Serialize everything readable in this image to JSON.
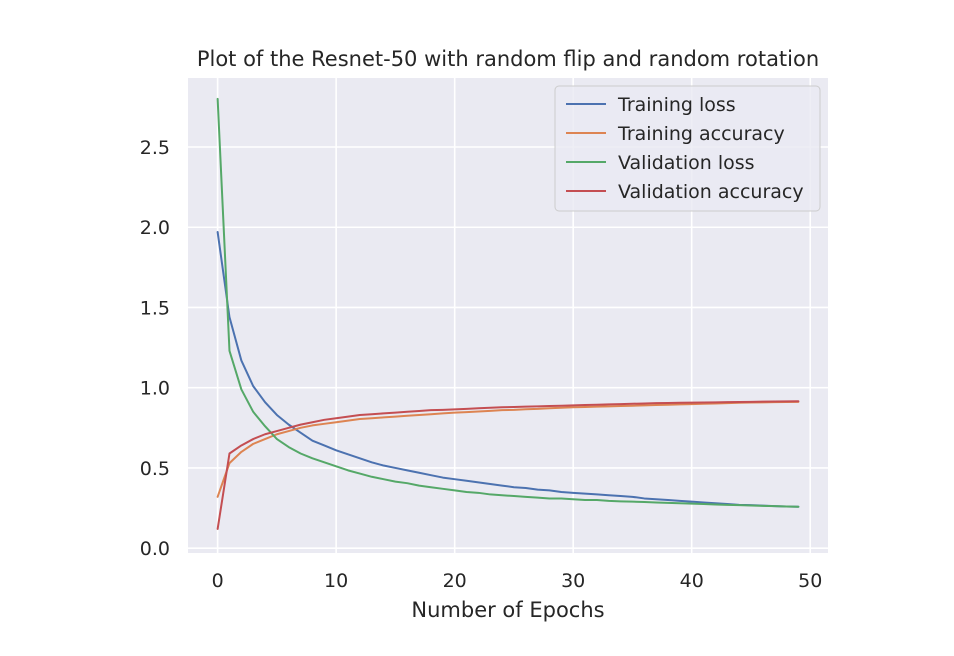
{
  "chart_data": {
    "type": "line",
    "title": "Plot of the Resnet-50 with random flip and random rotation",
    "xlabel": "Number of Epochs",
    "ylabel": "",
    "xlim": [
      -2.5,
      51.5
    ],
    "ylim": [
      -0.03,
      2.93
    ],
    "xticks": [
      0,
      10,
      20,
      30,
      40,
      50
    ],
    "xtick_labels": [
      "0",
      "10",
      "20",
      "30",
      "40",
      "50"
    ],
    "yticks": [
      0.0,
      0.5,
      1.0,
      1.5,
      2.0,
      2.5
    ],
    "ytick_labels": [
      "0.0",
      "0.5",
      "1.0",
      "1.5",
      "2.0",
      "2.5"
    ],
    "grid": true,
    "legend_position": "top-right",
    "x": [
      0,
      1,
      2,
      3,
      4,
      5,
      6,
      7,
      8,
      9,
      10,
      11,
      12,
      13,
      14,
      15,
      16,
      17,
      18,
      19,
      20,
      21,
      22,
      23,
      24,
      25,
      26,
      27,
      28,
      29,
      30,
      31,
      32,
      33,
      34,
      35,
      36,
      37,
      38,
      39,
      40,
      41,
      42,
      43,
      44,
      45,
      46,
      47,
      48,
      49
    ],
    "series": [
      {
        "name": "Training loss",
        "color": "#4c72b0",
        "values": [
          1.97,
          1.44,
          1.17,
          1.01,
          0.91,
          0.83,
          0.77,
          0.72,
          0.67,
          0.64,
          0.61,
          0.585,
          0.56,
          0.535,
          0.515,
          0.5,
          0.485,
          0.47,
          0.455,
          0.44,
          0.43,
          0.42,
          0.41,
          0.4,
          0.39,
          0.38,
          0.375,
          0.365,
          0.36,
          0.35,
          0.345,
          0.34,
          0.335,
          0.33,
          0.325,
          0.32,
          0.31,
          0.305,
          0.3,
          0.295,
          0.29,
          0.285,
          0.28,
          0.275,
          0.27,
          0.268,
          0.265,
          0.262,
          0.26,
          0.258
        ]
      },
      {
        "name": "Training accuracy",
        "color": "#dd8452",
        "values": [
          0.32,
          0.53,
          0.6,
          0.65,
          0.68,
          0.71,
          0.73,
          0.75,
          0.765,
          0.775,
          0.785,
          0.795,
          0.805,
          0.81,
          0.815,
          0.82,
          0.825,
          0.83,
          0.835,
          0.84,
          0.845,
          0.848,
          0.852,
          0.856,
          0.86,
          0.862,
          0.866,
          0.868,
          0.872,
          0.875,
          0.878,
          0.88,
          0.882,
          0.884,
          0.886,
          0.888,
          0.89,
          0.892,
          0.894,
          0.896,
          0.898,
          0.9,
          0.902,
          0.904,
          0.906,
          0.908,
          0.909,
          0.91,
          0.911,
          0.912
        ]
      },
      {
        "name": "Validation loss",
        "color": "#55a868",
        "values": [
          2.8,
          1.23,
          0.99,
          0.85,
          0.76,
          0.68,
          0.63,
          0.59,
          0.56,
          0.535,
          0.51,
          0.485,
          0.465,
          0.445,
          0.43,
          0.415,
          0.405,
          0.39,
          0.38,
          0.37,
          0.36,
          0.35,
          0.345,
          0.335,
          0.33,
          0.325,
          0.32,
          0.315,
          0.31,
          0.31,
          0.305,
          0.3,
          0.3,
          0.295,
          0.292,
          0.29,
          0.288,
          0.285,
          0.282,
          0.28,
          0.278,
          0.275,
          0.272,
          0.27,
          0.268,
          0.266,
          0.264,
          0.262,
          0.26,
          0.258
        ]
      },
      {
        "name": "Validation accuracy",
        "color": "#c44e52",
        "values": [
          0.12,
          0.59,
          0.64,
          0.68,
          0.71,
          0.73,
          0.75,
          0.77,
          0.785,
          0.8,
          0.81,
          0.82,
          0.83,
          0.835,
          0.84,
          0.845,
          0.85,
          0.855,
          0.86,
          0.862,
          0.865,
          0.868,
          0.872,
          0.875,
          0.878,
          0.88,
          0.882,
          0.884,
          0.886,
          0.888,
          0.89,
          0.892,
          0.894,
          0.896,
          0.898,
          0.9,
          0.902,
          0.904,
          0.905,
          0.906,
          0.907,
          0.908,
          0.909,
          0.91,
          0.911,
          0.912,
          0.913,
          0.914,
          0.915,
          0.916
        ]
      }
    ]
  }
}
